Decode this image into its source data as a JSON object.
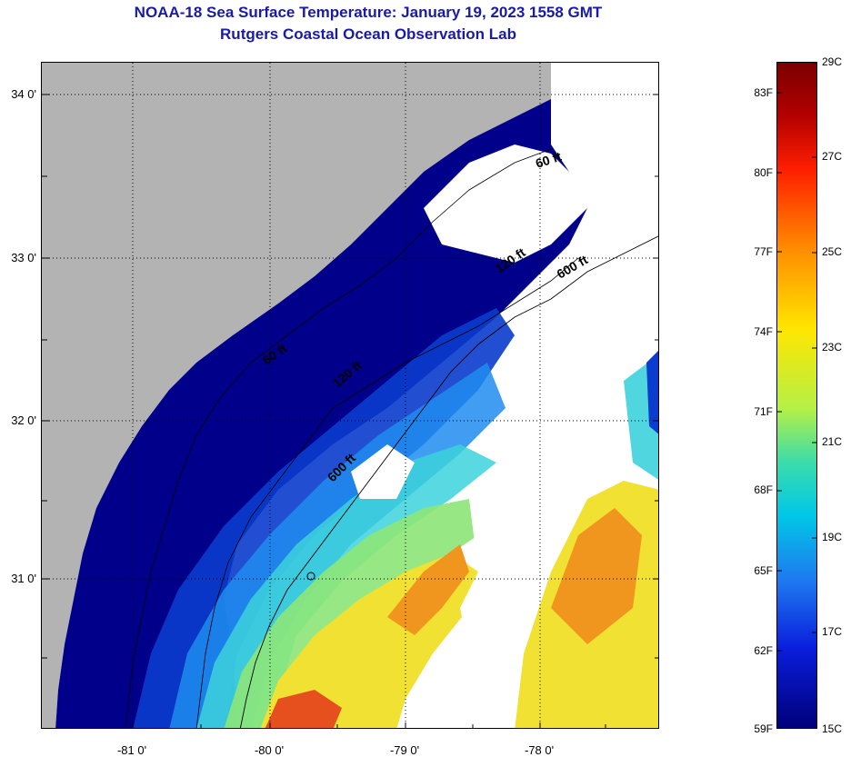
{
  "title": {
    "line1": "NOAA-18 Sea Surface Temperature:  January 19, 2023 1558 GMT",
    "line2": "Rutgers Coastal Ocean Observation Lab"
  },
  "map": {
    "latitude_labels": [
      "34 0'",
      "33 0'",
      "32 0'",
      "31 0'"
    ],
    "longitude_labels": [
      "-81 0'",
      "-80 0'",
      "-79 0'",
      "-78 0'"
    ],
    "contour_labels": [
      "60 ft",
      "120 ft",
      "600 ft",
      "60 ft",
      "120 ft",
      "600 ft"
    ],
    "colors": {
      "land": "#b3b3b3",
      "no_data": "#ffffff",
      "coldest": "#00008b",
      "cold": "#0a3ccd",
      "cool": "#1e8cf0",
      "mid": "#3cd2dc",
      "green": "#8ce678",
      "yellow": "#f0e132",
      "orange": "#f0961e",
      "red": "#e6501e"
    }
  },
  "colorbar": {
    "fahrenheit_labels": [
      "83F",
      "80F",
      "77F",
      "74F",
      "71F",
      "68F",
      "65F",
      "62F",
      "59F"
    ],
    "celsius_labels": [
      "29C",
      "27C",
      "25C",
      "23C",
      "21C",
      "19C",
      "17C",
      "15C"
    ],
    "range_c": [
      15,
      29
    ],
    "range_f": [
      59,
      84.2
    ]
  }
}
